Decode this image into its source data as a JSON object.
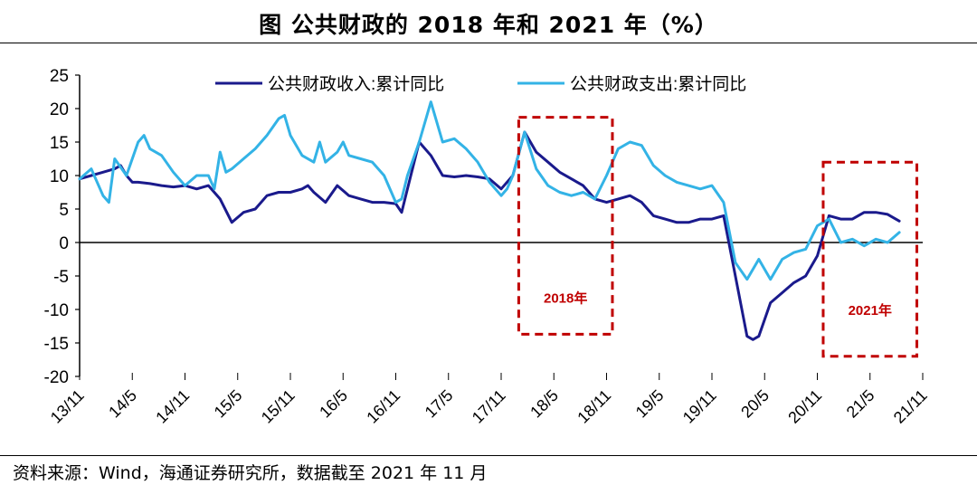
{
  "title": "图 公共财政的 2018 年和 2021 年（%）",
  "source": "资料来源：Wind，海通证券研究所，数据截至 2021 年 11 月",
  "colors": {
    "revenue": "#1a1a8c",
    "expenditure": "#33b3e6",
    "highlight": "#c00000",
    "axis": "#000000"
  },
  "chart_data": {
    "type": "line",
    "title": "公共财政的 2018 年和 2021 年（%）",
    "xlabel": "",
    "ylabel": "%",
    "ylim": [
      -20,
      25
    ],
    "yticks": [
      25,
      20,
      15,
      10,
      5,
      0,
      -5,
      -10,
      -15,
      -20
    ],
    "xticks": [
      "13/11",
      "14/5",
      "14/11",
      "15/5",
      "15/11",
      "16/5",
      "16/11",
      "17/5",
      "17/11",
      "18/5",
      "18/11",
      "19/5",
      "19/11",
      "20/5",
      "20/11",
      "21/5",
      "21/11"
    ],
    "legend": {
      "position": "top",
      "entries": [
        "公共财政收入:累计同比",
        "公共财政支出:累计同比"
      ]
    },
    "series": [
      {
        "name": "公共财政收入:累计同比",
        "color": "#1a1a8c",
        "points": [
          [
            0,
            9.5
          ],
          [
            1,
            10
          ],
          [
            2,
            10.5
          ],
          [
            3,
            11
          ],
          [
            3.5,
            11.5
          ],
          [
            4,
            10
          ],
          [
            4.5,
            9
          ],
          [
            5,
            9
          ],
          [
            6,
            8.8
          ],
          [
            7,
            8.5
          ],
          [
            8,
            8.3
          ],
          [
            9,
            8.5
          ],
          [
            10,
            8
          ],
          [
            11,
            8.5
          ],
          [
            12,
            6.5
          ],
          [
            13,
            3
          ],
          [
            14,
            4.5
          ],
          [
            15,
            5
          ],
          [
            16,
            7
          ],
          [
            17,
            7.5
          ],
          [
            18,
            7.5
          ],
          [
            19,
            8
          ],
          [
            19.5,
            8.5
          ],
          [
            20,
            7.5
          ],
          [
            21,
            6
          ],
          [
            22,
            8.5
          ],
          [
            23,
            7
          ],
          [
            24,
            6.5
          ],
          [
            25,
            6
          ],
          [
            26,
            6
          ],
          [
            27,
            5.8
          ],
          [
            27.5,
            4.5
          ],
          [
            28,
            8
          ],
          [
            29,
            15
          ],
          [
            30,
            13
          ],
          [
            31,
            10
          ],
          [
            32,
            9.8
          ],
          [
            33,
            10
          ],
          [
            34,
            9.8
          ],
          [
            35,
            9.5
          ],
          [
            36,
            8
          ],
          [
            37,
            10
          ],
          [
            38,
            16.5
          ],
          [
            39,
            13.5
          ],
          [
            40,
            12
          ],
          [
            41,
            10.5
          ],
          [
            42,
            9.5
          ],
          [
            43,
            8.5
          ],
          [
            44,
            6.5
          ],
          [
            45,
            6
          ],
          [
            46,
            6.5
          ],
          [
            47,
            7
          ],
          [
            48,
            6
          ],
          [
            49,
            4
          ],
          [
            50,
            3.5
          ],
          [
            51,
            3
          ],
          [
            52,
            3
          ],
          [
            53,
            3.5
          ],
          [
            54,
            3.5
          ],
          [
            55,
            4
          ],
          [
            56,
            -5
          ],
          [
            57,
            -14
          ],
          [
            57.5,
            -14.5
          ],
          [
            58,
            -14
          ],
          [
            59,
            -9
          ],
          [
            60,
            -7.5
          ],
          [
            61,
            -6
          ],
          [
            62,
            -5
          ],
          [
            63,
            -2
          ],
          [
            64,
            4
          ],
          [
            65,
            3.5
          ],
          [
            66,
            3.5
          ],
          [
            67,
            4.5
          ],
          [
            68,
            4.5
          ],
          [
            69,
            4.2
          ],
          [
            70,
            3.2
          ]
        ]
      },
      {
        "name": "公共财政支出:累计同比",
        "color": "#33b3e6",
        "points": [
          [
            0,
            9.5
          ],
          [
            1,
            11
          ],
          [
            2,
            7
          ],
          [
            2.5,
            6
          ],
          [
            3,
            12.5
          ],
          [
            4,
            10
          ],
          [
            5,
            15
          ],
          [
            5.5,
            16
          ],
          [
            6,
            14
          ],
          [
            7,
            13
          ],
          [
            8,
            10.5
          ],
          [
            9,
            8.5
          ],
          [
            10,
            10
          ],
          [
            11,
            10
          ],
          [
            11.5,
            8
          ],
          [
            12,
            13.5
          ],
          [
            12.5,
            10.5
          ],
          [
            13,
            11
          ],
          [
            14,
            12.5
          ],
          [
            15,
            14
          ],
          [
            16,
            16
          ],
          [
            17,
            18.5
          ],
          [
            17.5,
            19
          ],
          [
            18,
            16
          ],
          [
            19,
            13
          ],
          [
            20,
            12
          ],
          [
            20.5,
            15
          ],
          [
            21,
            12
          ],
          [
            22,
            13.5
          ],
          [
            22.5,
            15
          ],
          [
            23,
            13
          ],
          [
            24,
            12.5
          ],
          [
            25,
            12
          ],
          [
            26,
            10
          ],
          [
            27,
            6
          ],
          [
            27.5,
            6.5
          ],
          [
            28,
            10
          ],
          [
            29,
            15
          ],
          [
            30,
            21
          ],
          [
            31,
            15
          ],
          [
            32,
            15.5
          ],
          [
            33,
            14
          ],
          [
            34,
            12
          ],
          [
            35,
            9
          ],
          [
            36,
            7
          ],
          [
            36.5,
            8
          ],
          [
            37,
            10
          ],
          [
            38,
            16.5
          ],
          [
            39,
            11
          ],
          [
            40,
            8.5
          ],
          [
            41,
            7.5
          ],
          [
            42,
            7
          ],
          [
            43,
            7.5
          ],
          [
            44,
            6.5
          ],
          [
            45,
            10
          ],
          [
            46,
            14
          ],
          [
            47,
            15
          ],
          [
            48,
            14.5
          ],
          [
            49,
            11.5
          ],
          [
            50,
            10
          ],
          [
            51,
            9
          ],
          [
            52,
            8.5
          ],
          [
            53,
            8
          ],
          [
            54,
            8.5
          ],
          [
            55,
            6
          ],
          [
            56,
            -3
          ],
          [
            57,
            -5.5
          ],
          [
            58,
            -2.5
          ],
          [
            59,
            -5.5
          ],
          [
            60,
            -2.5
          ],
          [
            61,
            -1.5
          ],
          [
            62,
            -1
          ],
          [
            63,
            2.5
          ],
          [
            64,
            3.5
          ],
          [
            65,
            0
          ],
          [
            66,
            0.5
          ],
          [
            67,
            -0.5
          ],
          [
            68,
            0.5
          ],
          [
            69,
            0
          ],
          [
            70,
            1.5
          ]
        ]
      }
    ],
    "annotations": [
      {
        "label": "2018年",
        "x_range": [
          37.5,
          45.5
        ],
        "y_range": [
          -13.7,
          18.7
        ]
      },
      {
        "label": "2021年",
        "x_range": [
          63.5,
          71.5
        ],
        "y_range": [
          -17,
          12
        ]
      }
    ]
  }
}
